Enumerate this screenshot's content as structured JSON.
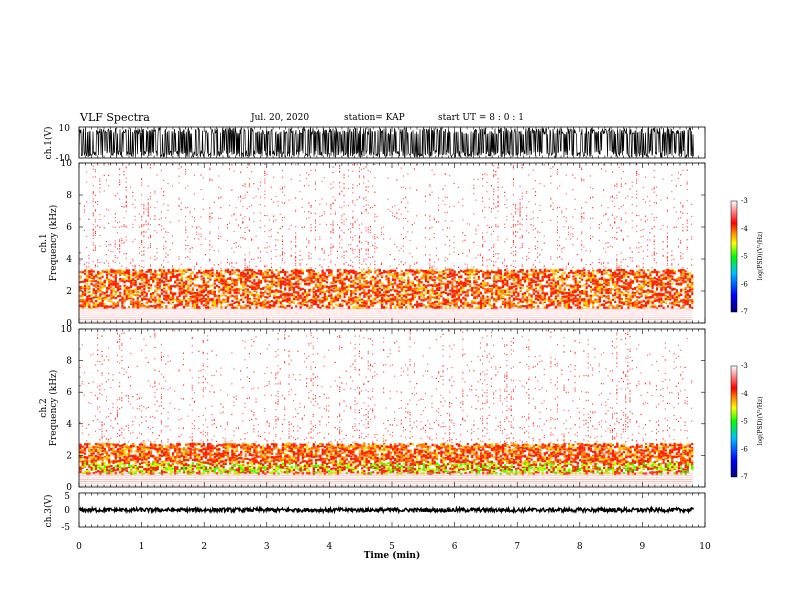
{
  "header": {
    "title": "VLF Spectra",
    "date": "Jul. 20, 2020",
    "station": "station= KAP",
    "start_ut": "start UT =  8 : 0 : 1"
  },
  "chart_data": [
    {
      "type": "line",
      "ylabel": "ch.1(V)",
      "yticks": [
        "10",
        "-10"
      ],
      "ylim": [
        -10,
        10
      ],
      "xlim": [
        0,
        10
      ],
      "description_series": "waveform",
      "amplitude_fraction": 0.95
    },
    {
      "type": "heatmap",
      "ylabel_top": "ch.1",
      "ylabel": "Frequency (kHz)",
      "yticks": [
        "0",
        "2",
        "4",
        "6",
        "8",
        "10"
      ],
      "ylim": [
        0,
        10
      ],
      "xlim": [
        0,
        9.8
      ],
      "strong_band_khz": [
        1.0,
        3.4
      ],
      "colorbar": {
        "label": "log(PSD)(V²/Hz)",
        "ticks": [
          "-3",
          "-4",
          "-5",
          "-6",
          "-7"
        ],
        "range": [
          -7,
          -3
        ]
      }
    },
    {
      "type": "heatmap",
      "ylabel_top": "ch.2",
      "ylabel": "Frequency (kHz)",
      "yticks": [
        "0",
        "2",
        "4",
        "6",
        "8",
        "10"
      ],
      "ylim": [
        0,
        10
      ],
      "xlim": [
        0,
        9.8
      ],
      "strong_band_khz": [
        0.9,
        2.8
      ],
      "colorbar": {
        "label": "log(PSD)(V²/Hz)",
        "ticks": [
          "-3",
          "-4",
          "-5",
          "-6",
          "-7"
        ],
        "range": [
          -7,
          -3
        ]
      }
    },
    {
      "type": "line",
      "ylabel": "ch.3(V)",
      "yticks": [
        "5",
        "0",
        "-5"
      ],
      "ylim": [
        -5,
        5
      ],
      "xlim": [
        0,
        10
      ],
      "level": 0,
      "amplitude": 0.6
    }
  ],
  "xaxis": {
    "label": "Time (min)",
    "ticks": [
      "0",
      "1",
      "2",
      "3",
      "4",
      "5",
      "6",
      "7",
      "8",
      "9",
      "10"
    ]
  },
  "colors": {
    "colormap": [
      "#00007a",
      "#0000ff",
      "#00c0ff",
      "#00ff00",
      "#ffff00",
      "#ff8000",
      "#ff0000",
      "#ffffff"
    ]
  }
}
